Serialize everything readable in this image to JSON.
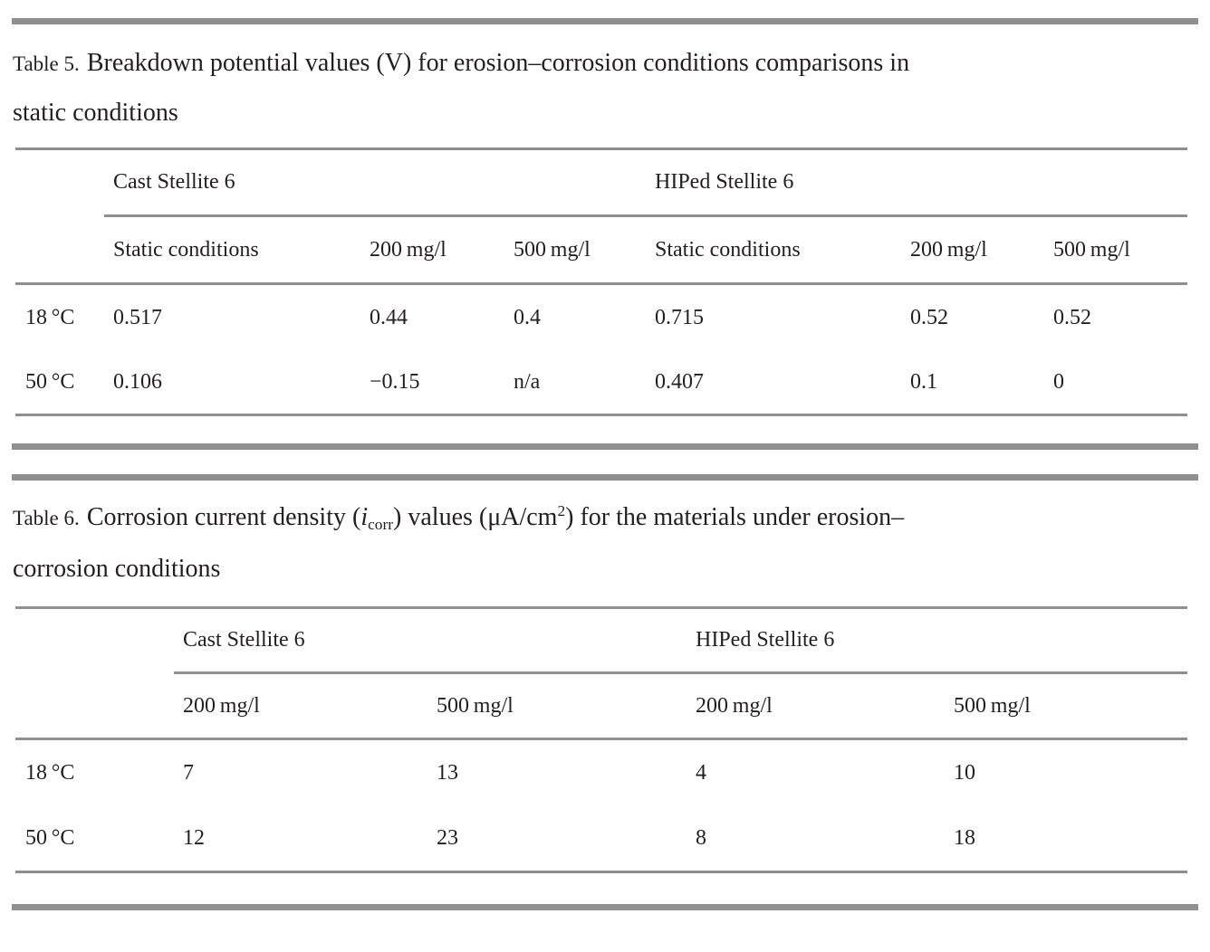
{
  "colors": {
    "text": "#231f20",
    "rule_gray": "#8f8f8f",
    "background": "#ffffff"
  },
  "table5": {
    "caption": {
      "label": "Table 5.",
      "line1": "Breakdown potential values (V) for erosion–corrosion conditions comparisons in",
      "line2": "static conditions"
    },
    "groups": [
      "Cast Stellite 6",
      "HIPed Stellite 6"
    ],
    "columns": [
      "Static conditions",
      "200 mg/l",
      "500 mg/l",
      "Static conditions",
      "200 mg/l",
      "500 mg/l"
    ],
    "rows": [
      {
        "label": "18 °C",
        "values": [
          "0.517",
          "0.44",
          "0.4",
          "0.715",
          "0.52",
          "0.52"
        ]
      },
      {
        "label": "50 °C",
        "values": [
          "0.106",
          "−0.15",
          "n/a",
          "0.407",
          "0.1",
          "0"
        ]
      }
    ]
  },
  "table6": {
    "caption": {
      "label": "Table 6.",
      "seg1": "Corrosion current density (",
      "var_i": "i",
      "sub_corr": "corr",
      "seg2": ") values (μA/cm",
      "sup_2": "2",
      "seg3": ") for the materials under erosion–",
      "line2": "corrosion conditions"
    },
    "groups": [
      "Cast Stellite 6",
      "HIPed Stellite 6"
    ],
    "columns": [
      "200 mg/l",
      "500 mg/l",
      "200 mg/l",
      "500 mg/l"
    ],
    "rows": [
      {
        "label": "18 °C",
        "values": [
          "7",
          "13",
          "4",
          "10"
        ]
      },
      {
        "label": "50 °C",
        "values": [
          "12",
          "23",
          "8",
          "18"
        ]
      }
    ]
  }
}
